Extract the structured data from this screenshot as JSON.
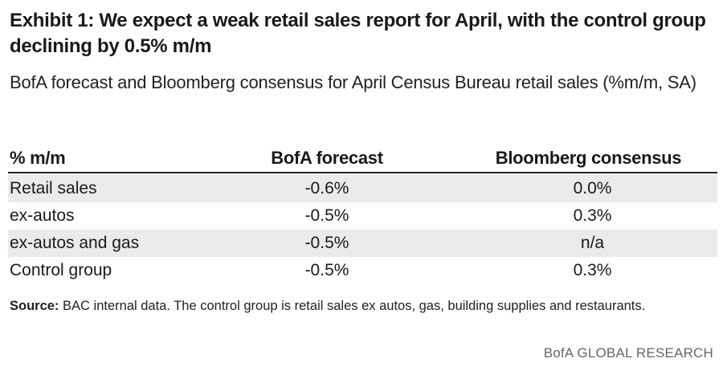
{
  "title": "Exhibit 1: We expect a weak retail sales report for April, with the control group declining by 0.5% m/m",
  "subtitle": "BofA forecast and Bloomberg consensus for April Census Bureau retail sales (%m/m, SA)",
  "table": {
    "headers": [
      "% m/m",
      "BofA forecast",
      "Bloomberg consensus"
    ],
    "rows": [
      [
        "Retail sales",
        "-0.6%",
        "0.0%"
      ],
      [
        "ex-autos",
        "-0.5%",
        "0.3%"
      ],
      [
        "ex-autos and gas",
        "-0.5%",
        "n/a"
      ],
      [
        "Control group",
        "-0.5%",
        "0.3%"
      ]
    ]
  },
  "source": {
    "label": "Source:",
    "text": "BAC internal data. The control group is retail sales ex autos, gas, building supplies and restaurants."
  },
  "brand": "BofA GLOBAL RESEARCH"
}
